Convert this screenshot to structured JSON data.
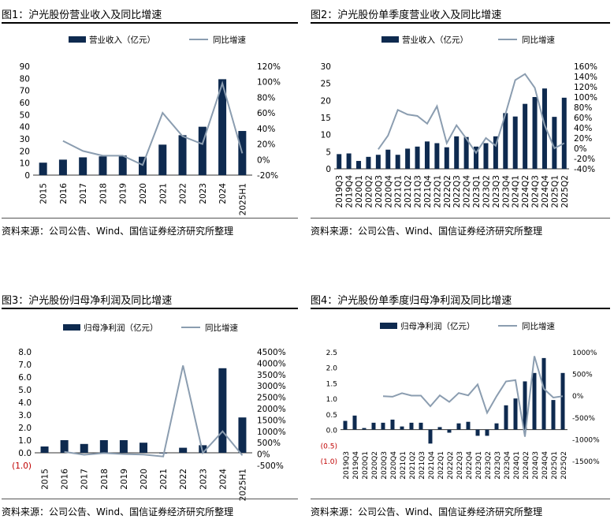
{
  "source_note": "资料来源：公司公告、Wind、国信证券经济研究所整理",
  "colors": {
    "bar": "#0e2a4f",
    "line": "#8b9db0",
    "negative_label": "#c00000"
  },
  "chart_data": [
    {
      "id": "fig1",
      "type": "bar+line",
      "title": "图1：沪光股份营业收入及同比增速",
      "legend": [
        "营业收入（亿元）",
        "同比增速"
      ],
      "categories": [
        "2015",
        "2016",
        "2017",
        "2018",
        "2019",
        "2020",
        "2021",
        "2022",
        "2023",
        "2024",
        "2025H1"
      ],
      "bar_values": [
        10.3,
        12.8,
        14.7,
        15.5,
        16.2,
        15.2,
        25.2,
        33.0,
        40.0,
        79.3,
        36.5
      ],
      "line_values": [
        null,
        24,
        11,
        5,
        5,
        -7,
        60,
        30,
        20,
        98,
        8
      ],
      "left_axis": {
        "min": 0,
        "max": 90,
        "step": 10,
        "ticks": [
          "0",
          "10",
          "20",
          "30",
          "40",
          "50",
          "60",
          "70",
          "80",
          "90"
        ]
      },
      "right_axis": {
        "min": -20,
        "max": 120,
        "step": 20,
        "ticks": [
          "-20%",
          "0%",
          "20%",
          "40%",
          "60%",
          "80%",
          "100%",
          "120%"
        ]
      }
    },
    {
      "id": "fig2",
      "type": "bar+line",
      "title": "图2：沪光股份单季度营业收入及同比增速",
      "legend": [
        "营业收入（亿元）",
        "同比增速"
      ],
      "categories": [
        "2019Q3",
        "2019Q4",
        "2020Q1",
        "2020Q2",
        "2020Q3",
        "2020Q4",
        "2021Q1",
        "2021Q2",
        "2021Q3",
        "2021Q4",
        "2022Q1",
        "2022Q2",
        "2022Q3",
        "2022Q4",
        "2023Q1",
        "2023Q2",
        "2023Q3",
        "2023Q4",
        "2024Q1",
        "2024Q2",
        "2024Q3",
        "2024Q4",
        "2025Q1",
        "2025Q2"
      ],
      "bar_values": [
        4.3,
        4.5,
        2.3,
        3.5,
        4.1,
        5.6,
        4.1,
        5.9,
        6.5,
        8.0,
        7.5,
        6.3,
        9.5,
        9.3,
        6.5,
        7.5,
        9.5,
        16.3,
        15.3,
        19.0,
        21.0,
        23.5,
        15.2,
        20.8
      ],
      "line_values": [
        null,
        null,
        null,
        null,
        -2,
        25,
        75,
        66,
        63,
        48,
        82,
        10,
        45,
        19,
        -9,
        20,
        5,
        67,
        133,
        145,
        118,
        45,
        0,
        10
      ],
      "left_axis": {
        "min": 0,
        "max": 30,
        "step": 5,
        "ticks": [
          "0",
          "5",
          "10",
          "15",
          "20",
          "25",
          "30"
        ]
      },
      "right_axis": {
        "min": -40,
        "max": 160,
        "step": 20,
        "ticks": [
          "-40%",
          "-20%",
          "0%",
          "20%",
          "40%",
          "60%",
          "80%",
          "100%",
          "120%",
          "140%",
          "160%"
        ]
      }
    },
    {
      "id": "fig3",
      "type": "bar+line",
      "title": "图3：沪光股份归母净利润及同比增速",
      "legend": [
        "归母净利润（亿元）",
        "同比增速"
      ],
      "categories": [
        "2015",
        "2016",
        "2017",
        "2018",
        "2019",
        "2020",
        "2021",
        "2022",
        "2023",
        "2024",
        "2025H1"
      ],
      "bar_values": [
        0.5,
        1.0,
        0.7,
        1.0,
        1.0,
        0.8,
        -0.05,
        0.4,
        0.6,
        6.7,
        2.8
      ],
      "line_values": [
        null,
        100,
        -30,
        40,
        0,
        -25,
        -106,
        3900,
        50,
        1000,
        -60
      ],
      "left_axis": {
        "min": -1,
        "max": 8,
        "step": 1,
        "ticks": [
          "(1.0)",
          "0.0",
          "1.0",
          "2.0",
          "3.0",
          "4.0",
          "5.0",
          "6.0",
          "7.0",
          "8.0"
        ]
      },
      "right_axis": {
        "min": -500,
        "max": 4500,
        "step": 500,
        "ticks": [
          "-500%",
          "0%",
          "500%",
          "1000%",
          "1500%",
          "2000%",
          "2500%",
          "3000%",
          "3500%",
          "4000%",
          "4500%"
        ]
      }
    },
    {
      "id": "fig4",
      "type": "bar+line",
      "title": "图4：沪光股份单季度归母净利润及同比增速",
      "legend": [
        "归母净利润（亿元）",
        "同比增速"
      ],
      "categories": [
        "2019Q3",
        "2019Q4",
        "2020Q1",
        "2020Q2",
        "2020Q3",
        "2020Q4",
        "2021Q1",
        "2021Q2",
        "2021Q3",
        "2021Q4",
        "2022Q1",
        "2022Q2",
        "2022Q3",
        "2022Q4",
        "2023Q1",
        "2023Q2",
        "2023Q3",
        "2023Q4",
        "2024Q1",
        "2024Q2",
        "2024Q3",
        "2024Q4",
        "2025Q1",
        "2025Q2"
      ],
      "bar_values": [
        0.28,
        0.45,
        0.05,
        0.22,
        0.22,
        0.32,
        0.1,
        0.22,
        0.22,
        -0.45,
        0.08,
        -0.1,
        0.2,
        0.25,
        -0.2,
        -0.2,
        0.2,
        0.78,
        1.0,
        1.55,
        1.82,
        2.3,
        0.95,
        1.82
      ],
      "line_values": [
        null,
        null,
        null,
        null,
        -20,
        -30,
        50,
        -5,
        -5,
        -250,
        0,
        -150,
        55,
        0,
        250,
        -400,
        -20,
        320,
        350,
        -950,
        900,
        150,
        -50,
        -20
      ],
      "left_axis": {
        "min": -1.0,
        "max": 2.5,
        "step": 0.5,
        "ticks": [
          "(1.0)",
          "(0.5)",
          "0.0",
          "0.5",
          "1.0",
          "1.5",
          "2.0",
          "2.5"
        ]
      },
      "right_axis": {
        "min": -1500,
        "max": 1000,
        "step": 500,
        "ticks": [
          "-1500%",
          "-1000%",
          "-500%",
          "0%",
          "500%",
          "1000%"
        ]
      }
    }
  ]
}
